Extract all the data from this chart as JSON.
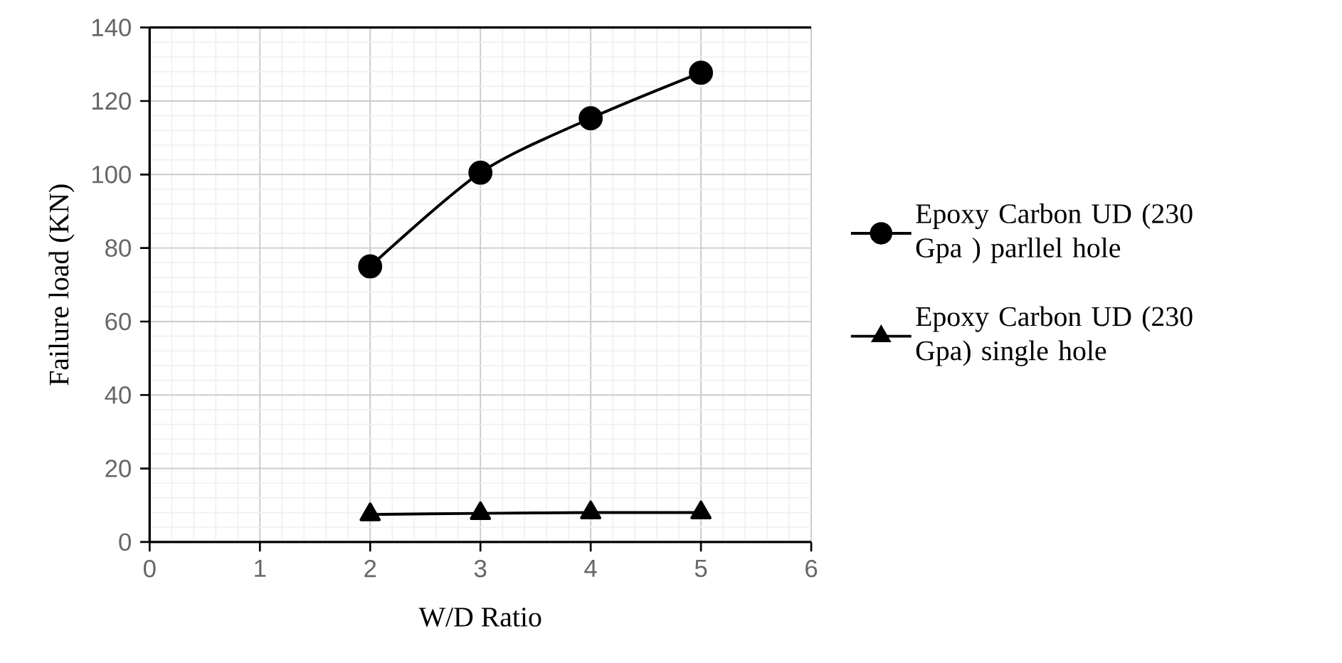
{
  "chart_data": {
    "type": "line",
    "xlabel": "W/D Ratio",
    "ylabel": "Failure load (KN)",
    "x": [
      2,
      3,
      4,
      5
    ],
    "series": [
      {
        "name": "Epoxy Carbon UD (230 Gpa ) parllel hole",
        "color": "#000000",
        "marker": "circle",
        "values": [
          75,
          100.5,
          115.3,
          127.7
        ]
      },
      {
        "name": "Epoxy Carbon UD (230 Gpa) single hole",
        "color": "#000000",
        "marker": "triangle",
        "values": [
          7.5,
          7.8,
          8,
          8
        ]
      }
    ],
    "xlim": [
      0,
      6
    ],
    "ylim": [
      0,
      140
    ],
    "xticks": [
      0,
      1,
      2,
      3,
      4,
      5,
      6
    ],
    "yticks": [
      0,
      20,
      40,
      60,
      80,
      100,
      120,
      140
    ],
    "grid": true,
    "legend": "right",
    "line_style": "solid"
  }
}
